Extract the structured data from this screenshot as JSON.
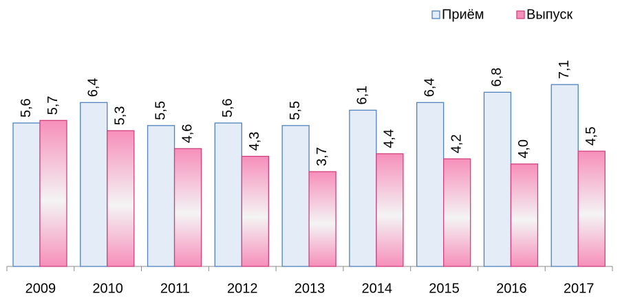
{
  "chart_data": {
    "type": "bar",
    "categories": [
      "2009",
      "2010",
      "2011",
      "2012",
      "2013",
      "2014",
      "2015",
      "2016",
      "2017"
    ],
    "series": [
      {
        "name": "Приём",
        "color": "#4f81bd",
        "fill": "#e3ecf7",
        "values": [
          5.6,
          6.4,
          5.5,
          5.6,
          5.5,
          6.1,
          6.4,
          6.8,
          7.1
        ],
        "value_labels": [
          "5,6",
          "6,4",
          "5,5",
          "5,6",
          "5,5",
          "6,1",
          "6,4",
          "6,8",
          "7,1"
        ]
      },
      {
        "name": "Выпуск",
        "color": "#d0427e",
        "fill": "#f68fba",
        "values": [
          5.7,
          5.3,
          4.6,
          4.3,
          3.7,
          4.4,
          4.2,
          4.0,
          4.5
        ],
        "value_labels": [
          "5,7",
          "5,3",
          "4,6",
          "4,3",
          "3,7",
          "4,4",
          "4,2",
          "4,0",
          "4,5"
        ]
      }
    ],
    "legend": "top-right"
  }
}
